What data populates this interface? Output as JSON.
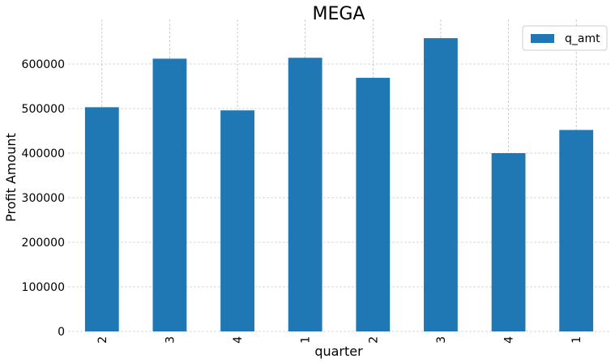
{
  "chart_data": {
    "type": "bar",
    "title": "MEGA",
    "xlabel": "quarter",
    "ylabel": "Profit Amount",
    "categories": [
      "2",
      "3",
      "4",
      "1",
      "2",
      "3",
      "4",
      "1"
    ],
    "series": [
      {
        "name": "q_amt",
        "color": "#1f77b4",
        "values": [
          503000,
          612000,
          496000,
          614000,
          569000,
          658000,
          400000,
          452000
        ]
      }
    ],
    "ylim": [
      0,
      700000
    ],
    "yticks": [
      "0",
      "100000",
      "200000",
      "300000",
      "400000",
      "500000",
      "600000"
    ],
    "ytick_values": [
      0,
      100000,
      200000,
      300000,
      400000,
      500000,
      600000
    ],
    "grid": true,
    "legend_position": "top-right"
  }
}
